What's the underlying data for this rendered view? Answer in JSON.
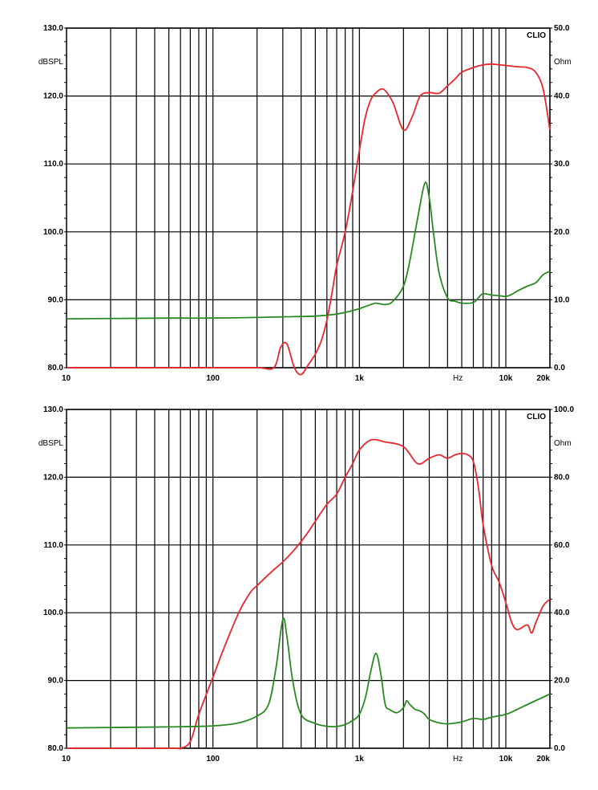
{
  "colors": {
    "spl": "#e8262b",
    "impedance": "#2a8a22",
    "grid": "#000000"
  },
  "chart_data": [
    {
      "type": "line",
      "brand": "CLIO",
      "ylabel_left": "dBSPL",
      "ylabel_right": "Ohm",
      "xunit_label": "Hz",
      "xscale": "log",
      "xlim": [
        10,
        20000
      ],
      "ylim_left": [
        80,
        130
      ],
      "ylim_right": [
        0,
        50
      ],
      "x_ticks": [
        {
          "v": 10,
          "label": "10"
        },
        {
          "v": 100,
          "label": "100"
        },
        {
          "v": 1000,
          "label": "1k"
        },
        {
          "v": 10000,
          "label": "10k"
        },
        {
          "v": 20000,
          "label": "20k"
        }
      ],
      "y_ticks_left": [
        "80.0",
        "90.0",
        "100.0",
        "110.0",
        "120.0",
        "130.0"
      ],
      "y_ticks_right": [
        "0.0",
        "10.0",
        "20.0",
        "30.0",
        "40.0",
        "50.0"
      ],
      "grid": true,
      "series": [
        {
          "axis": "left",
          "color": "#e8262b",
          "x": [
            10,
            50,
            100,
            200,
            260,
            290,
            320,
            360,
            400,
            450,
            500,
            550,
            600,
            650,
            700,
            800,
            900,
            1000,
            1100,
            1200,
            1300,
            1400,
            1500,
            1700,
            2000,
            2300,
            2600,
            3000,
            3500,
            4000,
            4500,
            5000,
            6000,
            7000,
            8000,
            9000,
            10000,
            12000,
            14000,
            16000,
            18000,
            20000
          ],
          "y": [
            80,
            80,
            80,
            80,
            80,
            83,
            83.5,
            80,
            79,
            80.5,
            82,
            84,
            87,
            91,
            95,
            100,
            106,
            112,
            117,
            119.5,
            120.5,
            121,
            120.8,
            119,
            115,
            117,
            120,
            120.5,
            120.4,
            121.5,
            122.5,
            123.5,
            124.2,
            124.6,
            124.7,
            124.6,
            124.5,
            124.3,
            124.2,
            123.5,
            121,
            115
          ]
        },
        {
          "axis": "right",
          "color": "#2a8a22",
          "x": [
            10,
            50,
            100,
            200,
            300,
            500,
            700,
            900,
            1000,
            1200,
            1300,
            1500,
            1700,
            2000,
            2200,
            2500,
            2800,
            3000,
            3200,
            3500,
            4000,
            4500,
            5000,
            6000,
            6500,
            7000,
            8000,
            9000,
            10000,
            11000,
            12000,
            14000,
            16000,
            18000,
            20000
          ],
          "y": [
            7.2,
            7.3,
            7.3,
            7.4,
            7.5,
            7.6,
            7.9,
            8.4,
            8.7,
            9.3,
            9.5,
            9.3,
            9.8,
            12,
            15.5,
            22,
            27.2,
            25,
            20,
            14,
            10.3,
            9.8,
            9.5,
            9.6,
            10.3,
            10.9,
            10.7,
            10.6,
            10.5,
            10.8,
            11.3,
            12,
            12.5,
            13.7,
            14.2
          ]
        }
      ]
    },
    {
      "type": "line",
      "brand": "CLIO",
      "ylabel_left": "dBSPL",
      "ylabel_right": "Ohm",
      "xunit_label": "Hz",
      "xscale": "log",
      "xlim": [
        10,
        20000
      ],
      "ylim_left": [
        80,
        130
      ],
      "ylim_right": [
        0,
        100
      ],
      "x_ticks": [
        {
          "v": 10,
          "label": "10"
        },
        {
          "v": 100,
          "label": "100"
        },
        {
          "v": 1000,
          "label": "1k"
        },
        {
          "v": 10000,
          "label": "10k"
        },
        {
          "v": 20000,
          "label": "20k"
        }
      ],
      "y_ticks_left": [
        "80.0",
        "90.0",
        "100.0",
        "110.0",
        "120.0",
        "130.0"
      ],
      "y_ticks_right": [
        "0.0",
        "20.0",
        "40.0",
        "60.0",
        "80.0",
        "100.0"
      ],
      "grid": true,
      "series": [
        {
          "axis": "left",
          "color": "#e8262b",
          "x": [
            10,
            50,
            60,
            70,
            80,
            100,
            120,
            150,
            180,
            200,
            250,
            300,
            350,
            400,
            450,
            500,
            600,
            700,
            800,
            900,
            1000,
            1200,
            1500,
            2000,
            2500,
            3000,
            3500,
            4000,
            4500,
            5000,
            5500,
            6000,
            6500,
            7000,
            8000,
            9000,
            10000,
            11000,
            12000,
            14000,
            15000,
            16000,
            18000,
            20000
          ],
          "y": [
            80,
            80,
            80,
            81,
            85,
            90.5,
            95,
            100,
            103,
            104,
            106,
            107.5,
            109,
            110.5,
            112,
            113.5,
            116,
            117.5,
            120,
            122,
            124,
            125.5,
            125.2,
            124.5,
            122,
            122.8,
            123.3,
            122.8,
            123.3,
            123.5,
            123.3,
            122.3,
            118.5,
            113,
            107,
            104.5,
            101.5,
            98.5,
            97.5,
            98.2,
            97,
            98.5,
            101,
            102
          ]
        },
        {
          "axis": "right",
          "color": "#2a8a22",
          "x": [
            10,
            50,
            100,
            150,
            200,
            240,
            270,
            300,
            320,
            350,
            400,
            500,
            600,
            700,
            800,
            900,
            1000,
            1100,
            1200,
            1300,
            1400,
            1500,
            1600,
            1800,
            2000,
            2100,
            2200,
            2400,
            2600,
            2800,
            3000,
            3500,
            4000,
            5000,
            6000,
            7000,
            8000,
            10000,
            12000,
            15000,
            20000
          ],
          "y": [
            6,
            6.3,
            6.6,
            7.5,
            9.5,
            13,
            24,
            38,
            33,
            20,
            10,
            7.3,
            6.5,
            6.4,
            7,
            8.2,
            10,
            15,
            23,
            28,
            22,
            13,
            11.5,
            10.5,
            12,
            14,
            13,
            11.5,
            11,
            10,
            8.5,
            7.5,
            7.2,
            7.8,
            8.8,
            8.5,
            9.2,
            10,
            11.5,
            13.5,
            16
          ]
        }
      ]
    }
  ]
}
